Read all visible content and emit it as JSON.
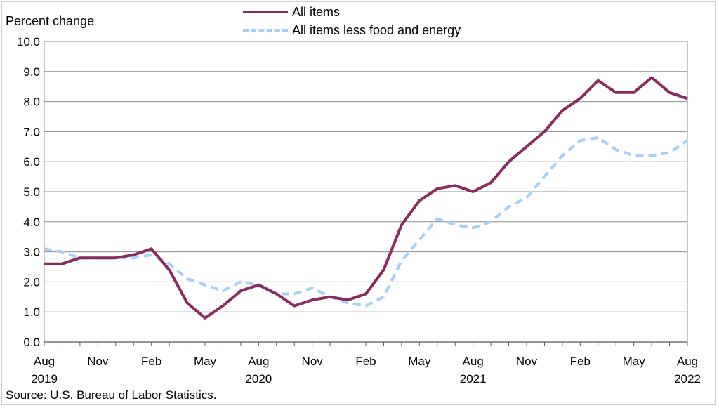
{
  "chart_data": {
    "type": "line",
    "ylabel": "Percent change",
    "source": "Source: U.S. Bureau of Labor Statistics.",
    "ylim": [
      0,
      10
    ],
    "yticks": [
      "0.0",
      "1.0",
      "2.0",
      "3.0",
      "4.0",
      "5.0",
      "6.0",
      "7.0",
      "8.0",
      "9.0",
      "10.0"
    ],
    "x": [
      "Aug 2019",
      "Sep 2019",
      "Oct 2019",
      "Nov 2019",
      "Dec 2019",
      "Jan 2020",
      "Feb 2020",
      "Mar 2020",
      "Apr 2020",
      "May 2020",
      "Jun 2020",
      "Jul 2020",
      "Aug 2020",
      "Sep 2020",
      "Oct 2020",
      "Nov 2020",
      "Dec 2020",
      "Jan 2021",
      "Feb 2021",
      "Mar 2021",
      "Apr 2021",
      "May 2021",
      "Jun 2021",
      "Jul 2021",
      "Aug 2021",
      "Sep 2021",
      "Oct 2021",
      "Nov 2021",
      "Dec 2021",
      "Jan 2022",
      "Feb 2022",
      "Mar 2022",
      "Apr 2022",
      "May 2022",
      "Jun 2022",
      "Jul 2022",
      "Aug 2022"
    ],
    "xtick_labels": [
      {
        "month": "Aug",
        "year": "2019"
      },
      {
        "month": "Nov",
        "year": ""
      },
      {
        "month": "Feb",
        "year": ""
      },
      {
        "month": "May",
        "year": ""
      },
      {
        "month": "Aug",
        "year": "2020"
      },
      {
        "month": "Nov",
        "year": ""
      },
      {
        "month": "Feb",
        "year": ""
      },
      {
        "month": "May",
        "year": ""
      },
      {
        "month": "Aug",
        "year": "2021"
      },
      {
        "month": "Nov",
        "year": ""
      },
      {
        "month": "Feb",
        "year": ""
      },
      {
        "month": "May",
        "year": ""
      },
      {
        "month": "Aug",
        "year": "2022"
      }
    ],
    "grid": true,
    "legend": "top",
    "series": [
      {
        "name": "All items",
        "color": "#8a2a5d",
        "style": "solid",
        "values": [
          2.6,
          2.6,
          2.8,
          2.8,
          2.8,
          2.9,
          3.1,
          2.4,
          1.3,
          0.8,
          1.2,
          1.7,
          1.9,
          1.6,
          1.2,
          1.4,
          1.5,
          1.4,
          1.6,
          2.4,
          3.9,
          4.7,
          5.1,
          5.2,
          5.0,
          5.3,
          6.0,
          6.5,
          7.0,
          7.7,
          8.1,
          8.7,
          8.3,
          8.3,
          8.8,
          8.3,
          8.1
        ]
      },
      {
        "name": "All items less food and energy",
        "color": "#a6cef6",
        "style": "dashed",
        "values": [
          3.1,
          3.0,
          2.8,
          2.8,
          2.8,
          2.8,
          2.9,
          2.6,
          2.1,
          1.9,
          1.7,
          2.0,
          1.9,
          1.6,
          1.6,
          1.8,
          1.5,
          1.3,
          1.2,
          1.5,
          2.7,
          3.4,
          4.1,
          3.9,
          3.8,
          4.0,
          4.5,
          4.8,
          5.5,
          6.2,
          6.7,
          6.8,
          6.4,
          6.2,
          6.2,
          6.3,
          6.7
        ]
      }
    ]
  }
}
